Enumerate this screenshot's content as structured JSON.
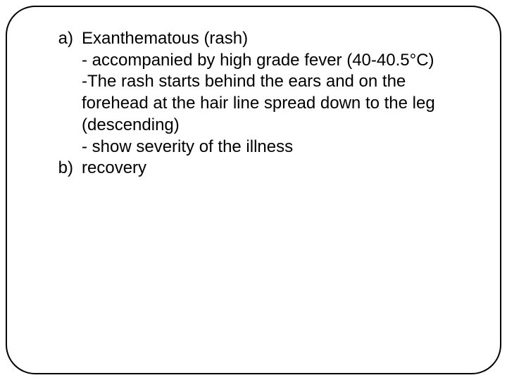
{
  "slide": {
    "items": [
      {
        "marker": "a)",
        "title": "Exanthematous (rash)",
        "lines": [
          "- accompanied by high grade fever (40-40.5°C)",
          "-The rash starts behind the ears and on the forehead at the hair line spread down to the leg (descending)",
          "- show severity of the illness"
        ]
      },
      {
        "marker": "b)",
        "title": "recovery",
        "lines": []
      }
    ]
  },
  "style": {
    "background_color": "#ffffff",
    "border_color": "#000000",
    "border_width": 2.5,
    "border_radius": 42,
    "text_color": "#000000",
    "font_family": "Arial, Helvetica, sans-serif",
    "font_size": 24,
    "line_height": 1.28
  }
}
